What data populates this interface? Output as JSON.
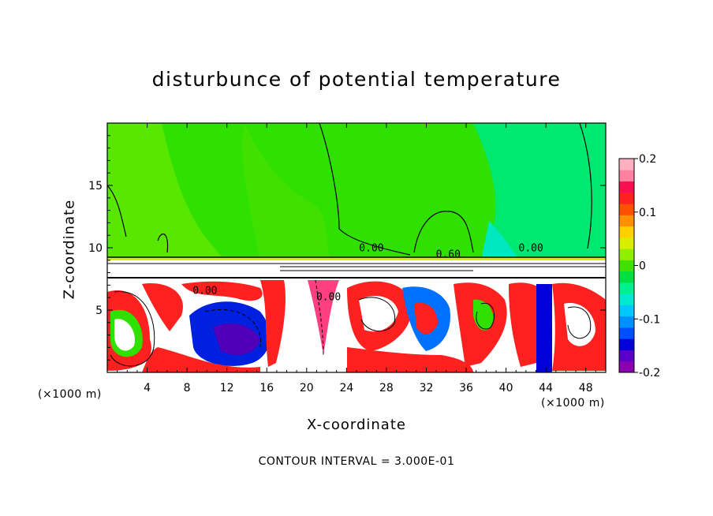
{
  "chart_data": {
    "type": "heatmap",
    "title": "disturbunce of potential temperature",
    "xlabel": "X-coordinate",
    "ylabel": "Z-coordinate",
    "x_unit": "(×1000 m)",
    "footer": "CONTOUR INTERVAL = 3.000E-01",
    "xlim": [
      0,
      50
    ],
    "ylim": [
      0,
      20
    ],
    "x_ticks": [
      4,
      8,
      12,
      16,
      20,
      24,
      28,
      32,
      36,
      40,
      44,
      48
    ],
    "y_ticks": [
      5,
      10,
      15
    ],
    "colorbar": {
      "range": [
        -0.2,
        0.2
      ],
      "tick_labels": [
        "0.2",
        "0.1",
        "0",
        "-0.1",
        "-0.2"
      ],
      "tick_values": [
        0.2,
        0.1,
        0,
        -0.1,
        -0.2
      ],
      "colors": [
        "#8B00B0",
        "#5a00c8",
        "#0000d8",
        "#0050ff",
        "#0090ff",
        "#00c8ff",
        "#00e8d0",
        "#00f090",
        "#00e040",
        "#40e000",
        "#90f000",
        "#d8f000",
        "#ffd000",
        "#ff9000",
        "#ff5000",
        "#ff2020",
        "#f81050",
        "#ff80a0",
        "#ffb0c0"
      ]
    },
    "contour_labels": [
      {
        "text": "0.00",
        "x": 26.5,
        "z": 9.7
      },
      {
        "text": "0.60",
        "x": 34.2,
        "z": 9.2
      },
      {
        "text": "0.00",
        "x": 42.5,
        "z": 9.7
      },
      {
        "text": "0.00",
        "x": 9.8,
        "z": 6.3
      },
      {
        "text": "0.00",
        "x": 22.2,
        "z": 5.8
      }
    ]
  }
}
